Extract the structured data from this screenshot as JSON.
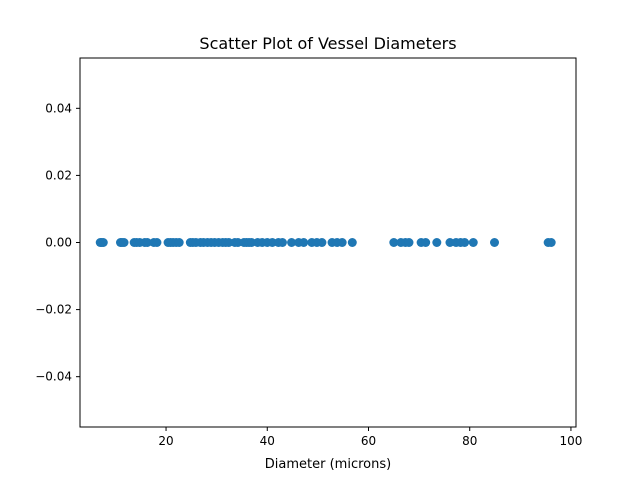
{
  "colors": {
    "background": "#ffffff",
    "axes": "#000000",
    "point": "#1f77b4"
  },
  "chart_data": {
    "type": "scatter",
    "title": "Scatter Plot of Vessel Diameters",
    "xlabel": "Diameter (microns)",
    "ylabel": "",
    "xlim": [
      3,
      101
    ],
    "ylim": [
      -0.055,
      0.055
    ],
    "xticks": [
      20,
      40,
      60,
      80,
      100
    ],
    "xtick_labels": [
      "20",
      "40",
      "60",
      "80",
      "100"
    ],
    "yticks": [
      0.04,
      0.02,
      0.0,
      -0.02,
      -0.04
    ],
    "ytick_labels": [
      "0.04",
      "0.02",
      "0.00",
      "−0.02",
      "−0.04"
    ],
    "grid": false,
    "legend": "none",
    "series": [
      {
        "x": [
          7,
          7.3,
          7.6,
          11,
          11.3,
          11.7,
          13.7,
          14.2,
          14.8,
          15.8,
          16.3,
          17.6,
          18.2,
          20.4,
          20.9,
          21.4,
          22,
          22.6,
          24.8,
          25.3,
          25.9,
          26.8,
          27.4,
          28.2,
          28.9,
          29.6,
          30.4,
          31.2,
          31.8,
          32.4,
          33.6,
          34.2,
          35.4,
          35.9,
          36.4,
          36.9,
          38.1,
          39,
          40,
          41,
          42.2,
          43,
          44.8,
          46.2,
          47.2,
          48.8,
          49.8,
          50.8,
          52.8,
          53.8,
          54.8,
          56.8,
          65,
          66.4,
          67.3,
          68,
          70.4,
          71.3,
          73.5,
          76.1,
          77.3,
          78.2,
          79,
          80.7,
          84.9,
          95.5,
          96.1
        ],
        "y": [
          0,
          0,
          0,
          0,
          0,
          0,
          0,
          0,
          0,
          0,
          0,
          0,
          0,
          0,
          0,
          0,
          0,
          0,
          0,
          0,
          0,
          0,
          0,
          0,
          0,
          0,
          0,
          0,
          0,
          0,
          0,
          0,
          0,
          0,
          0,
          0,
          0,
          0,
          0,
          0,
          0,
          0,
          0,
          0,
          0,
          0,
          0,
          0,
          0,
          0,
          0,
          0,
          0,
          0,
          0,
          0,
          0,
          0,
          0,
          0,
          0,
          0,
          0,
          0,
          0,
          0,
          0
        ]
      }
    ]
  }
}
